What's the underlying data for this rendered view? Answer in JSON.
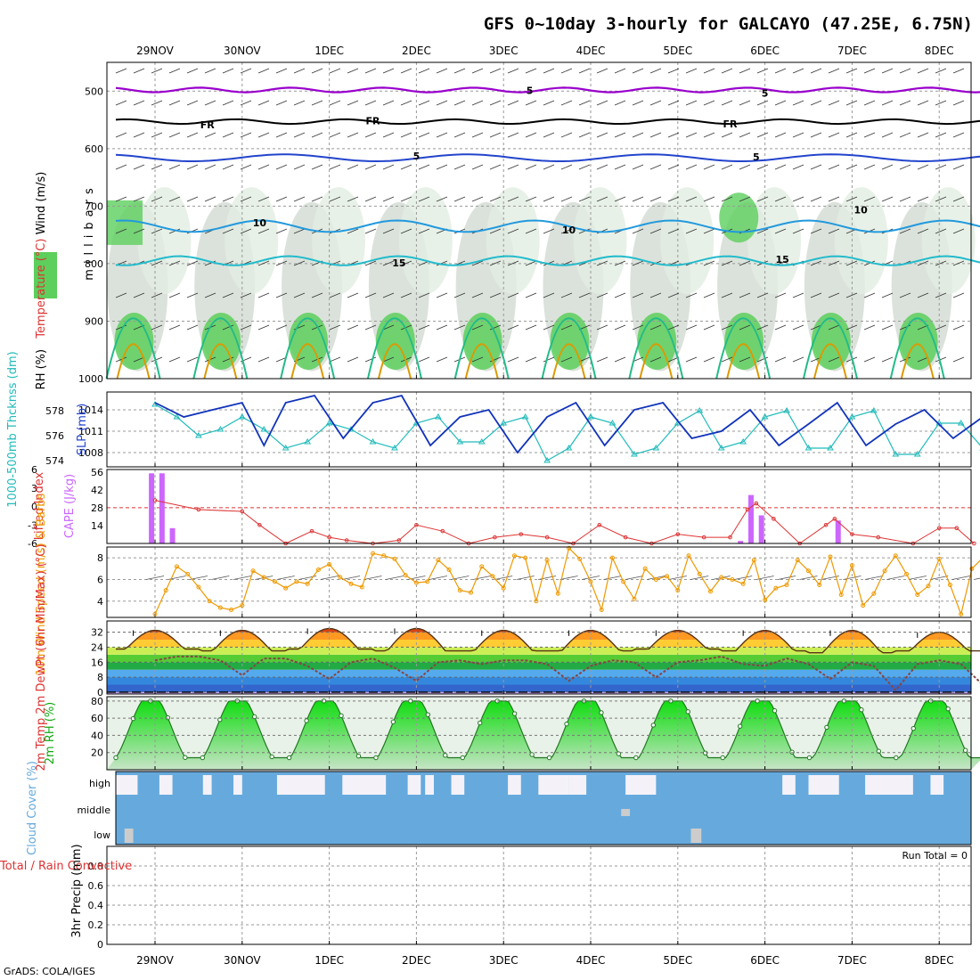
{
  "title": "GFS 0~10day 3-hourly for GALCAYO (47.25E, 6.75N)",
  "footer": "GrADS: COLA/IGES",
  "run_total_label": "Run Total = 0",
  "colors": {
    "rh_fill": "#5ccf5c",
    "isotherm_5": "#9900cc",
    "freezing": "#000000",
    "isotherm_mid": "#2244cc",
    "isotherm_10": "#2299dd",
    "isotherm_15": "#22bbcc",
    "isotherm_20": "#22bb88",
    "isotherm_25": "#dd9900",
    "slp": "#1133bb",
    "thickness": "#22bbbb",
    "cape": "#cc66ff",
    "lifted_index": "#dd3333",
    "wind_speed": "#ee9900",
    "rh2m": "#11cc11",
    "cloud": "#66aadd"
  },
  "chart_data": [
    {
      "type": "heatmap",
      "panel": "upper-air",
      "ylabel_segments": [
        "RH (%)",
        "Temperature (°C)",
        "Wind (m/s)"
      ],
      "ylabel2": "millibars",
      "x_dates": [
        "29NOV",
        "30NOV",
        "1DEC",
        "2DEC",
        "3DEC",
        "4DEC",
        "5DEC",
        "6DEC",
        "7DEC",
        "8DEC"
      ],
      "yticks": [
        "500",
        "600",
        "700",
        "800",
        "900",
        "1000"
      ],
      "ylim": [
        1000,
        450
      ],
      "contour_labels": [
        {
          "label": "5",
          "x": 4.3,
          "p": 497
        },
        {
          "label": "5",
          "x": 7.0,
          "p": 502
        },
        {
          "label": "FR",
          "x": 0.6,
          "p": 557
        },
        {
          "label": "FR",
          "x": 2.5,
          "p": 550
        },
        {
          "label": "FR",
          "x": 6.6,
          "p": 555
        },
        {
          "label": "5",
          "x": 3.0,
          "p": 611
        },
        {
          "label": "5",
          "x": 6.9,
          "p": 613
        },
        {
          "label": "10",
          "x": 1.2,
          "p": 727
        },
        {
          "label": "10",
          "x": 4.75,
          "p": 740
        },
        {
          "label": "10",
          "x": 8.1,
          "p": 705
        },
        {
          "label": "15",
          "x": 2.8,
          "p": 797
        },
        {
          "label": "15",
          "x": 7.2,
          "p": 791
        }
      ]
    },
    {
      "type": "line",
      "panel": "slp-thickness",
      "ylabel_left": "1000-500mb Thcknss (dm)",
      "ylabel_right": "SLP (mb)",
      "thickness_ticks": [
        "574",
        "576",
        "578"
      ],
      "slp_ticks": [
        "1008",
        "1011",
        "1014"
      ],
      "slp_x": [
        0,
        0.33,
        0.66,
        1,
        1.25,
        1.5,
        1.83,
        2.16,
        2.5,
        2.83,
        3.16,
        3.5,
        3.83,
        4.16,
        4.5,
        4.83,
        5.16,
        5.5,
        5.83,
        6.16,
        6.5,
        6.83,
        7.16,
        7.5,
        7.83,
        8.16,
        8.5,
        8.83,
        9.16,
        9.5
      ],
      "slp_values": [
        1015,
        1013,
        1014,
        1015,
        1009,
        1015,
        1016,
        1010,
        1015,
        1016,
        1009,
        1013,
        1014,
        1008,
        1013,
        1015,
        1009,
        1014,
        1015,
        1010,
        1011,
        1014,
        1009,
        1012,
        1015,
        1009,
        1012,
        1014,
        1010,
        1013
      ],
      "thickness_x": [
        0,
        0.25,
        0.5,
        0.75,
        1,
        1.25,
        1.5,
        1.75,
        2,
        2.25,
        2.5,
        2.75,
        3,
        3.25,
        3.5,
        3.75,
        4,
        4.25,
        4.5,
        4.75,
        5,
        5.25,
        5.5,
        5.75,
        6,
        6.25,
        6.5,
        6.75,
        7,
        7.25,
        7.5,
        7.75,
        8,
        8.25,
        8.5,
        8.75,
        9,
        9.25,
        9.5
      ],
      "thickness_values": [
        578.5,
        577.5,
        576,
        576.5,
        577.5,
        576.5,
        575,
        575.5,
        577,
        576.5,
        575.5,
        575,
        577,
        577.5,
        575.5,
        575.5,
        577,
        577.5,
        574,
        575,
        577.5,
        577,
        574.5,
        575,
        577,
        578,
        575,
        575.5,
        577.5,
        578,
        575,
        575,
        577.5,
        578,
        574.5,
        574.5,
        577,
        577,
        575
      ]
    },
    {
      "type": "bar",
      "panel": "cape-lifted-index",
      "ylabel_left": "Lifted Index",
      "ylabel_right": "CAPE (J/kg)",
      "li_ticks": [
        "6",
        "3",
        "0",
        "-3",
        "-6"
      ],
      "cape_ticks": [
        "14",
        "28",
        "42",
        "56"
      ],
      "cape_x": [
        -0.04,
        0.08,
        0.2,
        6.72,
        6.84,
        6.96,
        7.84
      ],
      "cape_values": [
        55,
        55,
        12,
        2,
        38,
        22,
        18
      ],
      "li_x": [
        0,
        0.5,
        1,
        1.2,
        1.5,
        1.8,
        2,
        2.2,
        2.5,
        2.8,
        3,
        3.3,
        3.6,
        3.9,
        4.2,
        4.5,
        4.8,
        5.1,
        5.4,
        5.7,
        6,
        6.3,
        6.6,
        6.8,
        6.9,
        7.1,
        7.4,
        7.7,
        7.8,
        8,
        8.3,
        8.7,
        9,
        9.2,
        9.4
      ],
      "li_values": [
        -1,
        0.5,
        0.8,
        3,
        6,
        4,
        5,
        5.5,
        6,
        5.5,
        3,
        4,
        6,
        5,
        4.5,
        5,
        6,
        3,
        5,
        6,
        4.5,
        5,
        5,
        0.5,
        -0.5,
        2,
        6,
        3,
        2,
        4.5,
        5,
        6,
        3.5,
        3.5,
        6
      ]
    },
    {
      "type": "line",
      "panel": "10m-wind",
      "ylabel": "10m Wind Speed (m/s) & Barbs",
      "yticks": [
        "4",
        "6",
        "8"
      ],
      "ylim": [
        2.5,
        9
      ],
      "x": [
        0,
        0.125,
        0.25,
        0.375,
        0.5,
        0.625,
        0.75,
        0.875,
        1,
        1.125,
        1.25,
        1.375,
        1.5,
        1.625,
        1.75,
        1.875,
        2,
        2.125,
        2.25,
        2.375,
        2.5,
        2.625,
        2.75,
        2.875,
        3,
        3.125,
        3.25,
        3.375,
        3.5,
        3.625,
        3.75,
        3.875,
        4,
        4.125,
        4.25,
        4.375,
        4.5,
        4.625,
        4.75,
        4.875,
        5,
        5.125,
        5.25,
        5.375,
        5.5,
        5.625,
        5.75,
        5.875,
        6,
        6.125,
        6.25,
        6.375,
        6.5,
        6.625,
        6.75,
        6.875,
        7,
        7.125,
        7.25,
        7.375,
        7.5,
        7.625,
        7.75,
        7.875,
        8,
        8.125,
        8.25,
        8.375,
        8.5,
        8.625,
        8.75,
        8.875,
        9,
        9.125,
        9.25,
        9.375,
        9.5
      ],
      "values": [
        2.8,
        5,
        7.2,
        6.5,
        5.3,
        4,
        3.4,
        3.2,
        3.6,
        6.8,
        6.2,
        5.8,
        5.2,
        5.8,
        5.6,
        6.9,
        7.4,
        6.2,
        5.6,
        5.3,
        8.4,
        8.2,
        7.9,
        6.4,
        5.7,
        5.8,
        7.8,
        6.9,
        5,
        4.8,
        7.2,
        6.3,
        5.2,
        8.2,
        8,
        4,
        7.8,
        4.7,
        8.9,
        7.9,
        5.8,
        3.2,
        8,
        5.8,
        4.2,
        7,
        6,
        6.3,
        5,
        8.2,
        6.5,
        4.9,
        6.2,
        6,
        5.6,
        7.8,
        4.1,
        5.2,
        5.5,
        7.8,
        6.8,
        5.5,
        8.1,
        4.6,
        7.3,
        3.6,
        4.7,
        6.8,
        8.2,
        6.5,
        4.6,
        5.4,
        7.9,
        5.5,
        2.8,
        7,
        8
      ]
    },
    {
      "type": "area",
      "panel": "2m-temp",
      "ylabel": "2m Temp 2m DewPt (6hr Min/Max) (°C)",
      "yticks": [
        "0",
        "8",
        "16",
        "24",
        "32"
      ],
      "ylim": [
        -1,
        38
      ],
      "day_x": [
        0,
        1,
        2,
        3,
        4,
        5,
        6,
        7,
        8,
        9
      ],
      "temp_max": [
        33,
        33,
        34,
        34,
        33,
        33,
        33,
        33,
        33,
        32
      ],
      "temp_min": [
        23,
        22,
        23,
        22,
        22,
        22,
        23,
        22,
        21,
        22
      ],
      "dewpoint_x": [
        0,
        0.25,
        0.5,
        0.75,
        1,
        1.25,
        1.5,
        1.75,
        2,
        2.25,
        2.5,
        2.75,
        3,
        3.25,
        3.5,
        3.75,
        4,
        4.25,
        4.5,
        4.75,
        5,
        5.25,
        5.5,
        5.75,
        6,
        6.25,
        6.5,
        6.75,
        7,
        7.25,
        7.5,
        7.75,
        8,
        8.25,
        8.5,
        8.75,
        9,
        9.25,
        9.5
      ],
      "dewpoint_values": [
        17,
        19,
        19,
        17,
        9,
        18,
        18,
        14,
        7,
        16,
        18,
        13,
        6,
        16,
        17,
        15,
        17,
        17,
        15,
        6,
        14,
        17,
        16,
        8,
        16,
        17,
        19,
        15,
        14,
        18,
        15,
        7,
        16,
        14,
        1,
        15,
        17,
        15,
        4
      ]
    },
    {
      "type": "area",
      "panel": "2m-rh",
      "ylabel": "2m RH (%)",
      "yticks": [
        "20",
        "40",
        "60",
        "80"
      ],
      "ylim": [
        0,
        85
      ],
      "x": [
        0,
        0.5,
        1,
        1.5,
        2,
        2.5,
        3,
        3.5,
        4,
        4.5,
        5,
        5.5,
        6,
        6.5,
        7,
        7.5,
        8,
        8.5,
        9,
        9.5
      ],
      "values": [
        30,
        80,
        18,
        78,
        12,
        74,
        14,
        80,
        16,
        82,
        15,
        75,
        17,
        75,
        14,
        78,
        18,
        82,
        12,
        20
      ],
      "peaks_x": [
        0.05,
        0.5,
        1,
        1.5,
        2,
        2.5,
        3,
        3.5,
        4,
        4.5,
        5,
        5.5,
        6,
        6.5,
        7,
        7.5,
        8,
        8.5,
        9,
        9.5
      ],
      "peaks": [
        30,
        80,
        18,
        78,
        12,
        74,
        14,
        80,
        16,
        82,
        15,
        75,
        17,
        75,
        14,
        78,
        18,
        82,
        12,
        20
      ]
    },
    {
      "type": "heatmap",
      "panel": "cloud-cover",
      "ylabel": "Cloud Cover (%)",
      "yticks": [
        "high",
        "middle",
        "low"
      ],
      "gaps": [
        {
          "x": 0.0,
          "w": 0.25,
          "row": "high"
        },
        {
          "x": 0.5,
          "w": 0.15,
          "row": "high"
        },
        {
          "x": 1.0,
          "w": 0.1,
          "row": "high"
        },
        {
          "x": 1.35,
          "w": 0.1,
          "row": "high"
        },
        {
          "x": 1.85,
          "w": 0.55,
          "row": "high"
        },
        {
          "x": 2.6,
          "w": 0.5,
          "row": "high"
        },
        {
          "x": 3.35,
          "w": 0.15,
          "row": "high"
        },
        {
          "x": 3.55,
          "w": 0.1,
          "row": "high"
        },
        {
          "x": 3.85,
          "w": 0.15,
          "row": "high"
        },
        {
          "x": 4.5,
          "w": 0.15,
          "row": "high"
        },
        {
          "x": 4.85,
          "w": 0.35,
          "row": "high"
        },
        {
          "x": 5.2,
          "w": 0.2,
          "row": "high"
        },
        {
          "x": 5.85,
          "w": 0.35,
          "row": "high"
        },
        {
          "x": 7.65,
          "w": 0.15,
          "row": "high"
        },
        {
          "x": 7.95,
          "w": 0.35,
          "row": "high"
        },
        {
          "x": 8.6,
          "w": 0.55,
          "row": "high"
        },
        {
          "x": 9.35,
          "w": 0.15,
          "row": "high"
        },
        {
          "x": 0.1,
          "w": 0.1,
          "row": "low"
        },
        {
          "x": 6.6,
          "w": 0.12,
          "row": "low"
        },
        {
          "x": 5.8,
          "w": 0.1,
          "row": "middle"
        }
      ]
    },
    {
      "type": "bar",
      "panel": "precip",
      "ylabel_left": "Total / Rain Convective",
      "ylabel": "3hr Precip (mm)",
      "yticks": [
        "0",
        "0.2",
        "0.4",
        "0.6",
        "0.8"
      ],
      "ylim": [
        0,
        1
      ],
      "values": []
    }
  ]
}
